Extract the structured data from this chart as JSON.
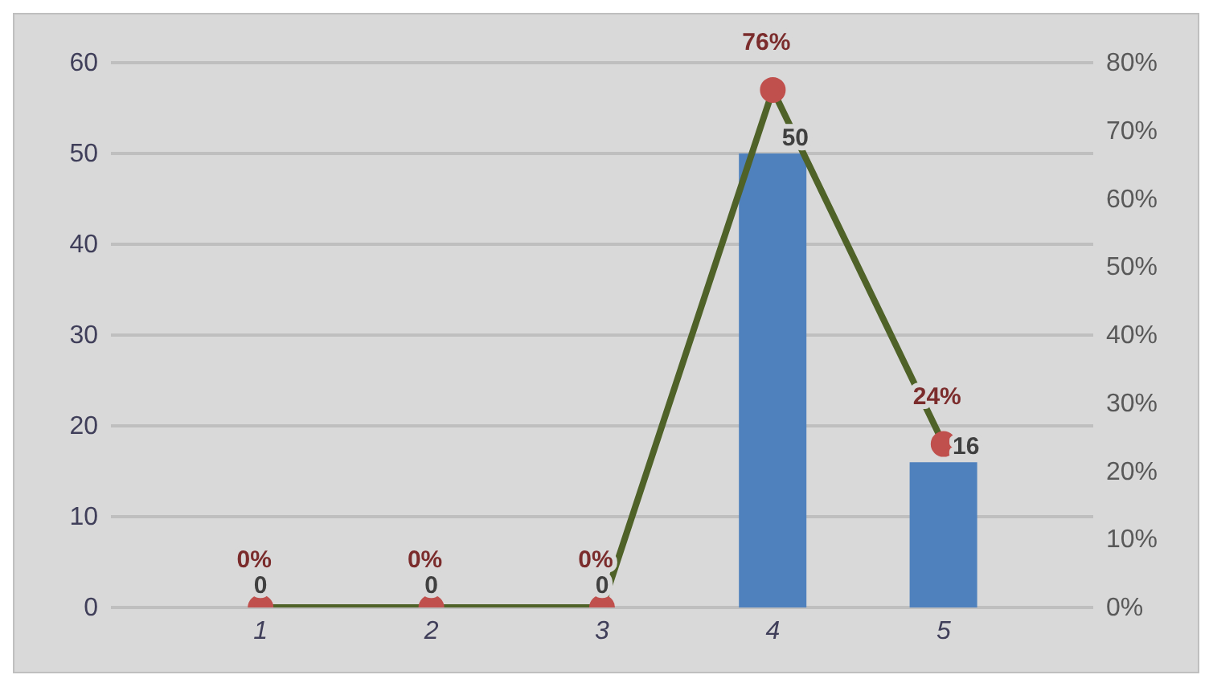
{
  "chart_data": {
    "type": "bar",
    "categories": [
      "1",
      "2",
      "3",
      "4",
      "5"
    ],
    "series": [
      {
        "type": "bar",
        "color": "#4f81bd",
        "values": [
          0,
          0,
          0,
          50,
          16
        ],
        "value_labels": [
          "0",
          "0",
          "0",
          "50",
          "16"
        ]
      },
      {
        "type": "line",
        "axis": "y2",
        "color": "#4f6228",
        "values": [
          0,
          0,
          0,
          76,
          24
        ],
        "value_labels": [
          "0%",
          "0%",
          "0%",
          "76%",
          "24%"
        ]
      }
    ],
    "ylim": [
      0,
      60
    ],
    "yticks": [
      0,
      10,
      20,
      30,
      40,
      50,
      60
    ],
    "y2lim": [
      0,
      80
    ],
    "y2ticks": [
      {
        "value": 0,
        "label": "0%"
      },
      {
        "value": 10,
        "label": "10%"
      },
      {
        "value": 20,
        "label": "20%"
      },
      {
        "value": 30,
        "label": "30%"
      },
      {
        "value": 40,
        "label": "40%"
      },
      {
        "value": 50,
        "label": "50%"
      },
      {
        "value": 60,
        "label": "60%"
      },
      {
        "value": 70,
        "label": "70%"
      },
      {
        "value": 80,
        "label": "80%"
      }
    ],
    "grid": "y",
    "legend": false,
    "marker": "circle"
  }
}
